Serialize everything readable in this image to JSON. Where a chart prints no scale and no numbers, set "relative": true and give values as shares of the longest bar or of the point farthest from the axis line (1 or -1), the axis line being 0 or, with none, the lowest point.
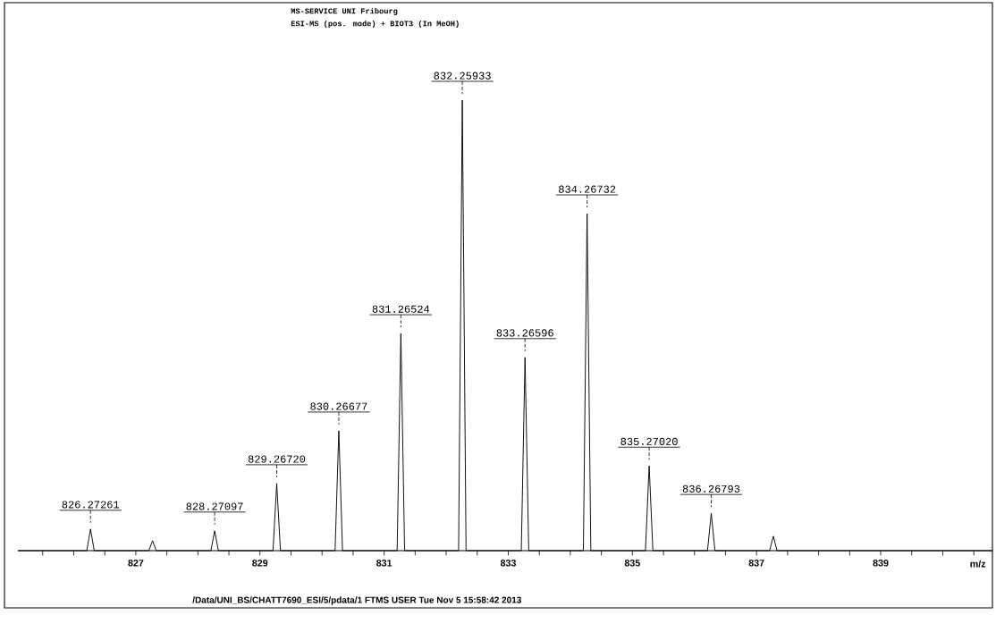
{
  "chart_data": {
    "type": "line",
    "relative": true,
    "title": "MS-SERVICE  UNI Fribourg",
    "subtitle": "ESI-MS (pos. mode) +     BIOT3     (In MeOH)",
    "xlabel": "m/z",
    "xlim": [
      825.1,
      840.8
    ],
    "xticks": [
      {
        "value": 825.5,
        "label": null
      },
      {
        "value": 826,
        "label": null
      },
      {
        "value": 826.5,
        "label": null
      },
      827,
      {
        "value": 827.5,
        "label": null
      },
      {
        "value": 828,
        "label": null
      },
      {
        "value": 828.5,
        "label": null
      },
      829,
      {
        "value": 829.5,
        "label": null
      },
      {
        "value": 830,
        "label": null
      },
      {
        "value": 830.5,
        "label": null
      },
      831,
      {
        "value": 831.5,
        "label": null
      },
      {
        "value": 832,
        "label": null
      },
      {
        "value": 832.5,
        "label": null
      },
      833,
      {
        "value": 833.5,
        "label": null
      },
      {
        "value": 834,
        "label": null
      },
      {
        "value": 834.5,
        "label": null
      },
      835,
      {
        "value": 835.5,
        "label": null
      },
      {
        "value": 836,
        "label": null
      },
      {
        "value": 836.5,
        "label": null
      },
      837,
      {
        "value": 837.5,
        "label": null
      },
      {
        "value": 838,
        "label": null
      },
      {
        "value": 838.5,
        "label": null
      },
      839,
      {
        "value": 839.5,
        "label": null
      },
      {
        "value": 840,
        "label": null
      },
      {
        "value": 840.5,
        "label": null
      }
    ],
    "series": [
      {
        "color": "#000000",
        "x": [
          825.1,
          826.21,
          826.27,
          826.33,
          827.21,
          827.27,
          827.33,
          828.21,
          828.27,
          828.33,
          829.21,
          829.27,
          829.33,
          830.21,
          830.27,
          830.33,
          831.21,
          831.27,
          831.33,
          832.2,
          832.26,
          832.32,
          833.21,
          833.27,
          833.33,
          834.21,
          834.27,
          834.33,
          835.21,
          835.27,
          835.33,
          836.21,
          836.27,
          836.33,
          837.21,
          837.27,
          837.33,
          840.8
        ],
        "values": [
          0,
          0,
          0.048,
          0,
          0,
          0.022,
          0,
          0,
          0.044,
          0,
          0,
          0.149,
          0,
          0,
          0.266,
          0,
          0,
          0.482,
          0,
          0,
          1,
          0,
          0,
          0.429,
          0,
          0,
          0.748,
          0,
          0,
          0.188,
          0,
          0,
          0.083,
          0,
          0,
          0.032,
          0,
          0
        ]
      }
    ],
    "annotations": [
      {
        "text": "826.27261",
        "x": 826.27,
        "y": 0.048
      },
      {
        "text": "828.27097",
        "x": 828.27,
        "y": 0.044
      },
      {
        "text": "829.26720",
        "x": 829.27,
        "y": 0.149
      },
      {
        "text": "830.26677",
        "x": 830.27,
        "y": 0.266
      },
      {
        "text": "831.26524",
        "x": 831.27,
        "y": 0.482
      },
      {
        "text": "832.25933",
        "x": 832.26,
        "y": 1
      },
      {
        "text": "833.26596",
        "x": 833.27,
        "y": 0.429
      },
      {
        "text": "834.26732",
        "x": 834.27,
        "y": 0.748
      },
      {
        "text": "835.27020",
        "x": 835.27,
        "y": 0.188
      },
      {
        "text": "836.26793",
        "x": 836.27,
        "y": 0.083
      },
      "/Data/UNI_BS/CHATT7690_ESI/5/pdata/1   FTMS USER   Tue Nov  5 15:58:42 2013"
    ]
  }
}
